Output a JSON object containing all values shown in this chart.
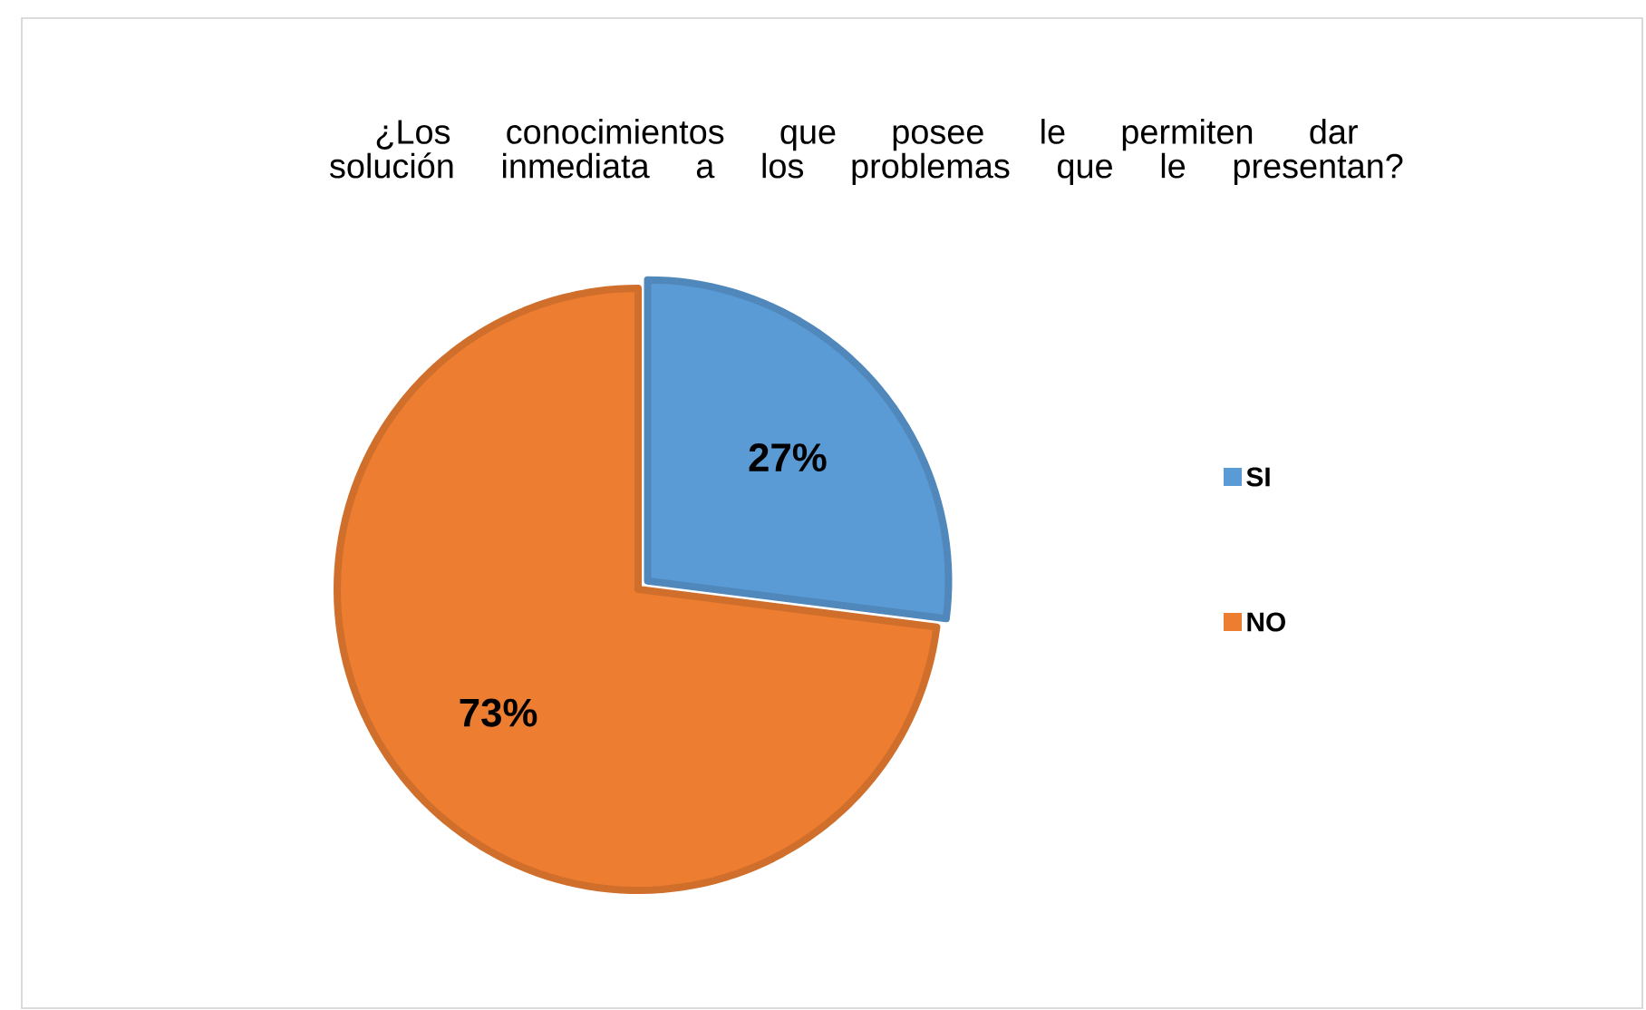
{
  "chart_data": {
    "type": "pie",
    "title": "¿Los conocimientos que posee le permiten dar solución inmediata a los problemas que le presentan?",
    "categories": [
      "SI",
      "NO"
    ],
    "values": [
      27,
      73
    ],
    "colors": [
      "#5b9bd5",
      "#ed7d31"
    ],
    "value_labels": [
      "27%",
      "73%"
    ],
    "legend": "right"
  }
}
